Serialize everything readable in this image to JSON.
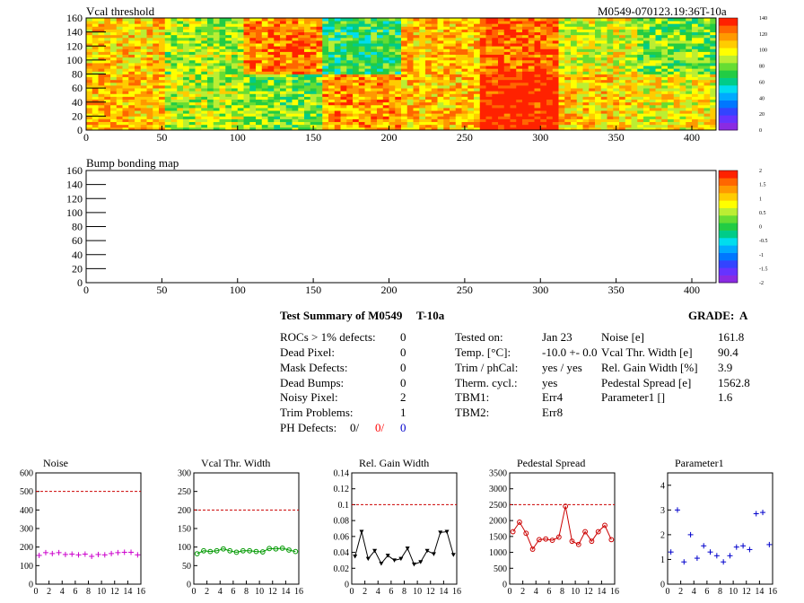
{
  "header": {
    "map1_title": "Vcal threshold",
    "module_id": "M0549-070123.19:36T-10a",
    "map2_title": "Bump bonding map"
  },
  "map1": {
    "yticks": [
      "0",
      "20",
      "40",
      "60",
      "80",
      "100",
      "120",
      "140",
      "160"
    ],
    "xticks": [
      "0",
      "50",
      "100",
      "150",
      "200",
      "250",
      "300",
      "350",
      "400"
    ],
    "palette_labels": [
      "0",
      "20",
      "40",
      "60",
      "80",
      "100",
      "120",
      "140"
    ]
  },
  "map2": {
    "yticks": [
      "0",
      "20",
      "40",
      "60",
      "80",
      "100",
      "120",
      "140",
      "160"
    ],
    "xticks": [
      "0",
      "50",
      "100",
      "150",
      "200",
      "250",
      "300",
      "350",
      "400"
    ],
    "palette_labels": [
      "-2",
      "-1.5",
      "-1",
      "-0.5",
      "0",
      "0.5",
      "1",
      "1.5",
      "2"
    ]
  },
  "summary": {
    "title": "Test Summary of M0549",
    "temp_code": "T-10a",
    "grade_label": "GRADE:",
    "grade": "A",
    "left": [
      {
        "label": "ROCs > 1% defects:",
        "value": "0"
      },
      {
        "label": "Dead Pixel:",
        "value": "0"
      },
      {
        "label": "Mask Defects:",
        "value": "0"
      },
      {
        "label": "Dead Bumps:",
        "value": "0"
      },
      {
        "label": "Noisy Pixel:",
        "value": "2"
      },
      {
        "label": "Trim Problems:",
        "value": "1"
      }
    ],
    "ph_label": "PH Defects:",
    "ph_values": [
      "0/",
      "0/",
      "0"
    ],
    "ph_colors": [
      "#000000",
      "#ff0000",
      "#0000cc"
    ],
    "mid": [
      {
        "label": "Tested on:",
        "value": "Jan 23"
      },
      {
        "label": "Temp. [°C]:",
        "value": "-10.0 +- 0.0"
      },
      {
        "label": "Trim / phCal:",
        "value": "yes / yes"
      },
      {
        "label": "Therm. cycl.:",
        "value": "yes"
      },
      {
        "label": "TBM1:",
        "value": "Err4"
      },
      {
        "label": "TBM2:",
        "value": "Err8"
      }
    ],
    "right": [
      {
        "label": "Noise [e]",
        "value": "161.8"
      },
      {
        "label": "Vcal Thr. Width [e]",
        "value": "90.4"
      },
      {
        "label": "Rel. Gain Width [%]",
        "value": "3.9"
      },
      {
        "label": "Pedestal Spread [e]",
        "value": "1562.8"
      },
      {
        "label": "Parameter1 []",
        "value": "1.6"
      }
    ]
  },
  "chart_data": [
    {
      "type": "heatmap",
      "title": "Vcal threshold",
      "xlim": [
        0,
        416
      ],
      "ylim": [
        0,
        160
      ],
      "z_range": [
        0,
        140
      ],
      "grid": false,
      "legend": "right",
      "roc_layout": {
        "columns": 8,
        "rows": 2,
        "roc_size": [
          52,
          80
        ]
      },
      "roc_means": {
        "top": [
          105,
          85,
          120,
          70,
          110,
          125,
          95,
          80
        ],
        "bottom": [
          110,
          90,
          80,
          115,
          110,
          140,
          105,
          100
        ]
      }
    },
    {
      "type": "heatmap",
      "title": "Bump bonding map",
      "xlim": [
        0,
        416
      ],
      "ylim": [
        0,
        160
      ],
      "z_range": [
        -2,
        2
      ],
      "grid": false,
      "legend": "right",
      "values": []
    },
    {
      "type": "scatter",
      "title": "Noise",
      "xlim": [
        0,
        16
      ],
      "ylim": [
        0,
        600
      ],
      "xticks": [
        "0",
        "2",
        "4",
        "6",
        "8",
        "10",
        "12",
        "14",
        "16"
      ],
      "yticks": [
        "0",
        "100",
        "200",
        "300",
        "400",
        "500",
        "600"
      ],
      "x": [
        0,
        1,
        2,
        3,
        4,
        5,
        6,
        7,
        8,
        9,
        10,
        11,
        12,
        13,
        14,
        15
      ],
      "values": [
        155,
        170,
        165,
        170,
        160,
        162,
        158,
        162,
        150,
        160,
        158,
        165,
        170,
        172,
        172,
        158
      ],
      "reference_line": 500,
      "color": "#cc00cc",
      "marker": "cross"
    },
    {
      "type": "scatter",
      "title": "Vcal Thr. Width",
      "xlim": [
        0,
        16
      ],
      "ylim": [
        0,
        300
      ],
      "xticks": [
        "0",
        "2",
        "4",
        "6",
        "8",
        "10",
        "12",
        "14",
        "16"
      ],
      "yticks": [
        "0",
        "50",
        "100",
        "150",
        "200",
        "250",
        "300"
      ],
      "x": [
        0,
        1,
        2,
        3,
        4,
        5,
        6,
        7,
        8,
        9,
        10,
        11,
        12,
        13,
        14,
        15
      ],
      "values": [
        82,
        90,
        88,
        90,
        95,
        90,
        86,
        90,
        90,
        88,
        87,
        96,
        95,
        97,
        92,
        88
      ],
      "reference_line": 200,
      "color": "#009900",
      "marker": "circle"
    },
    {
      "type": "line",
      "title": "Rel. Gain Width",
      "xlim": [
        0,
        16
      ],
      "ylim": [
        0,
        0.14
      ],
      "xticks": [
        "0",
        "2",
        "4",
        "6",
        "8",
        "10",
        "12",
        "14",
        "16"
      ],
      "yticks": [
        "0",
        "0.02",
        "0.04",
        "0.06",
        "0.08",
        "0.1",
        "0.12",
        "0.14"
      ],
      "x": [
        0,
        1,
        2,
        3,
        4,
        5,
        6,
        7,
        8,
        9,
        10,
        11,
        12,
        13,
        14,
        15
      ],
      "values": [
        0.035,
        0.066,
        0.032,
        0.042,
        0.026,
        0.036,
        0.03,
        0.032,
        0.045,
        0.025,
        0.028,
        0.042,
        0.038,
        0.065,
        0.066,
        0.037
      ],
      "reference_line": 0.1,
      "color": "#000000",
      "marker": "triangle-down"
    },
    {
      "type": "line",
      "title": "Pedestal Spread",
      "xlim": [
        0,
        16
      ],
      "ylim": [
        0,
        3500
      ],
      "xticks": [
        "0",
        "2",
        "4",
        "6",
        "8",
        "10",
        "12",
        "14",
        "16"
      ],
      "yticks": [
        "0",
        "500",
        "1000",
        "1500",
        "2000",
        "2500",
        "3000",
        "3500"
      ],
      "x": [
        0,
        1,
        2,
        3,
        4,
        5,
        6,
        7,
        8,
        9,
        10,
        11,
        12,
        13,
        14,
        15
      ],
      "values": [
        1650,
        1950,
        1600,
        1100,
        1400,
        1420,
        1380,
        1480,
        2450,
        1350,
        1250,
        1650,
        1350,
        1650,
        1850,
        1400
      ],
      "reference_line": 2500,
      "color": "#cc0000",
      "marker": "circle"
    },
    {
      "type": "scatter",
      "title": "Parameter1",
      "xlim": [
        0,
        16
      ],
      "ylim": [
        0,
        4.5
      ],
      "xticks": [
        "0",
        "2",
        "4",
        "6",
        "8",
        "10",
        "12",
        "14",
        "16"
      ],
      "yticks": [
        "0",
        "1",
        "2",
        "3",
        "4"
      ],
      "x": [
        0,
        1,
        2,
        3,
        4,
        5,
        6,
        7,
        8,
        9,
        10,
        11,
        12,
        13,
        14,
        15
      ],
      "values": [
        1.3,
        3.0,
        0.9,
        2.0,
        1.05,
        1.55,
        1.3,
        1.15,
        0.9,
        1.15,
        1.5,
        1.55,
        1.4,
        2.85,
        2.9,
        1.6
      ],
      "color": "#0000cc",
      "marker": "cross"
    }
  ]
}
